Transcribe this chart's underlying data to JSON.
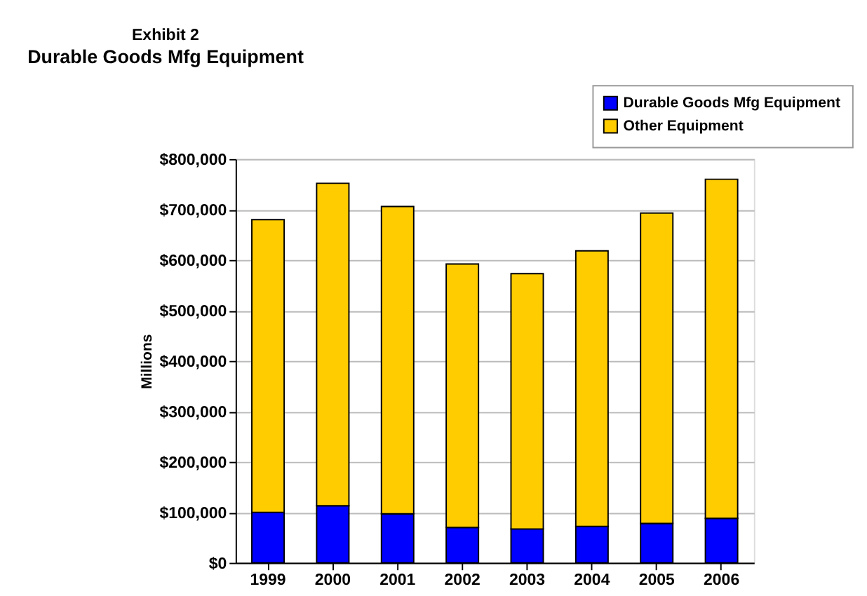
{
  "chart_data": {
    "type": "bar",
    "title": "Exhibit 2",
    "subtitle": "Durable Goods Mfg Equipment",
    "ylabel": "Millions",
    "categories": [
      "1999",
      "2000",
      "2001",
      "2002",
      "2003",
      "2004",
      "2005",
      "2006"
    ],
    "stacked": true,
    "series": [
      {
        "name": "Durable Goods Mfg Equipment",
        "color": "#0000ff",
        "values": [
          100000,
          113000,
          97000,
          70000,
          67000,
          72000,
          78000,
          88000
        ]
      },
      {
        "name": "Other Equipment",
        "color": "#ffcc00",
        "values": [
          580000,
          639000,
          609000,
          522000,
          506000,
          546000,
          615000,
          672000
        ]
      }
    ],
    "ylim": [
      0,
      800000
    ],
    "yticks": [
      {
        "value": 0,
        "label": "$0"
      },
      {
        "value": 100000,
        "label": "$100,000"
      },
      {
        "value": 200000,
        "label": "$200,000"
      },
      {
        "value": 300000,
        "label": "$300,000"
      },
      {
        "value": 400000,
        "label": "$400,000"
      },
      {
        "value": 500000,
        "label": "$500,000"
      },
      {
        "value": 600000,
        "label": "$600,000"
      },
      {
        "value": 700000,
        "label": "$700,000"
      },
      {
        "value": 800000,
        "label": "$800,000"
      }
    ],
    "grid": "y",
    "legend": "top right"
  }
}
